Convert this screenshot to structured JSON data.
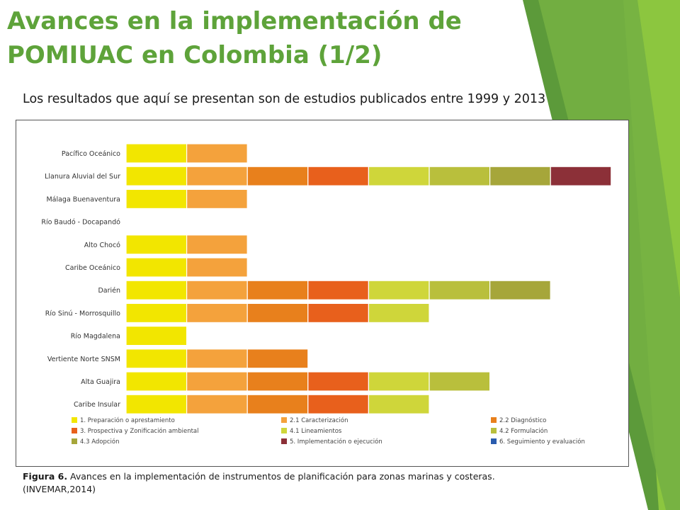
{
  "slide": {
    "title_line1": "Avances en la implementación de",
    "title_line2": "POMIUAC en Colombia (1/2)",
    "subtitle": "Los resultados que aquí se presentan son de estudios publicados entre 1999 y 2013",
    "caption_label": "Figura 6.",
    "caption_text": " Avances en la implementación de instrumentos de planificación para zonas marinas y costeras.",
    "caption_source": "(INVEMAR,2014)",
    "colors": {
      "title": "#5ea33a",
      "accent_green_dark": "#5c9a3a",
      "accent_green_light": "#8cc63f"
    }
  },
  "chart_data": {
    "type": "bar",
    "orientation": "horizontal",
    "stacked": true,
    "categories": [
      "Pacífico Oceánico",
      "Llanura Aluvial del Sur",
      "Málaga Buenaventura",
      "Río Baudó - Docapandó",
      "Alto Chocó",
      "Caribe Oceánico",
      "Darién",
      "Río Sinú - Morrosquillo",
      "Río Magdalena",
      "Vertiente Norte SNSM",
      "Alta Guajira",
      "Caribe Insular"
    ],
    "stages_completed": [
      2,
      8,
      2,
      0,
      2,
      2,
      7,
      5,
      1,
      3,
      6,
      5
    ],
    "series": [
      {
        "name": "1. Preparación o aprestamiento",
        "color": "#f2e600"
      },
      {
        "name": "2.1 Caracterización",
        "color": "#f4a23c"
      },
      {
        "name": "2.2 Diagnóstico",
        "color": "#e8801c"
      },
      {
        "name": "3. Prospectiva y Zonificación ambiental",
        "color": "#e8601c"
      },
      {
        "name": "4.1 Lineamientos",
        "color": "#cfd63a"
      },
      {
        "name": "4.2 Formulación",
        "color": "#b9bf3c"
      },
      {
        "name": "4.3 Adopción",
        "color": "#a6a63a"
      },
      {
        "name": "5. Implementación o ejecución",
        "color": "#8c3038"
      },
      {
        "name": "6. Seguimiento y evaluación",
        "color": "#2a5cae"
      }
    ],
    "legend": [
      [
        "1. Preparación o aprestamiento",
        "2.1 Caracterización",
        "2.2 Diagnóstico"
      ],
      [
        "3. Prospectiva y Zonificación ambiental",
        "4.1 Lineamientos",
        "4.2 Formulación"
      ],
      [
        "4.3 Adopción",
        "5. Implementación o ejecución",
        "6. Seguimiento y evaluación"
      ]
    ],
    "legend_position": "bottom",
    "grid": false
  }
}
